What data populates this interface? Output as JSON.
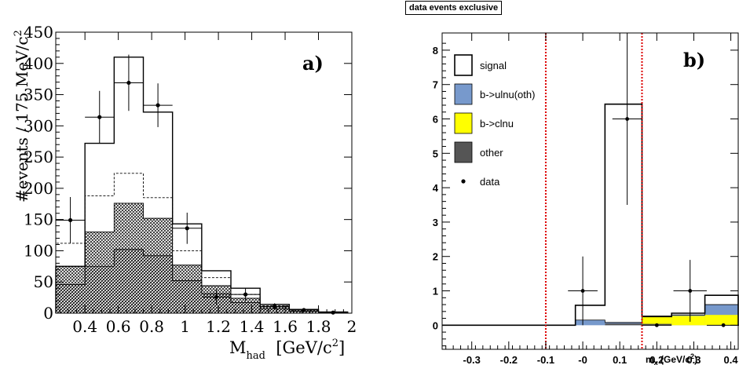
{
  "header": {
    "title": "data events exclusive"
  },
  "chart_data": [
    {
      "type": "histogram",
      "panel_label": "a)",
      "ylabel": "#events / 175 MeV/c",
      "ylabel_sup": "2",
      "xlabel_main": "M",
      "xlabel_sub": "had",
      "xlabel_unit": "[GeV/c",
      "xlabel_unit_sup": "2",
      "xlabel_close": "]",
      "xlim": [
        0.225,
        2.0
      ],
      "ylim": [
        0,
        450
      ],
      "xticks": [
        "0.4",
        "0.6",
        "0.8",
        "1",
        "1.2",
        "1.4",
        "1.6",
        "1.8",
        "2"
      ],
      "yticks": [
        "0",
        "50",
        "100",
        "150",
        "200",
        "250",
        "300",
        "350",
        "400",
        "450"
      ],
      "bin_edges": [
        0.225,
        0.4,
        0.575,
        0.75,
        0.925,
        1.1,
        1.275,
        1.45,
        1.625,
        1.8,
        1.975
      ],
      "series": [
        {
          "style": "solid",
          "values": [
            75,
            272,
            410,
            322,
            143,
            68,
            40,
            14,
            6,
            2
          ]
        },
        {
          "style": "dashed",
          "values": [
            112,
            188,
            224,
            185,
            100,
            57,
            30,
            12,
            5,
            2
          ]
        },
        {
          "style": "crosshatch",
          "values": [
            75,
            130,
            176,
            152,
            77,
            44,
            24,
            10,
            5,
            1
          ]
        },
        {
          "style": "diagonal",
          "values": [
            46,
            75,
            102,
            92,
            52,
            31,
            17,
            7,
            3,
            1
          ]
        }
      ],
      "data_points": {
        "x": [
          0.3125,
          0.4875,
          0.6625,
          0.8375,
          1.0125,
          1.1875,
          1.3625,
          1.5375,
          1.7125,
          1.8875
        ],
        "y": [
          149,
          314,
          369,
          333,
          136,
          26,
          30,
          11,
          5,
          1
        ],
        "yerr": [
          37,
          42,
          45,
          35,
          25,
          12,
          10,
          5,
          3,
          1
        ]
      }
    },
    {
      "type": "histogram",
      "panel_label": "b)",
      "xlabel_main": "m",
      "xlabel_sub": "x",
      "xlabel_unit": "(GeV/c",
      "xlabel_unit_sup": "2",
      "xlabel_close": ")",
      "xlim": [
        -0.38,
        0.42
      ],
      "ylim": [
        -0.7,
        8.5
      ],
      "xticks": [
        "-0.3",
        "-0.2",
        "-0.1",
        "-0",
        "0.1",
        "0.2",
        "0.3",
        "0.4"
      ],
      "xtick_values": [
        -0.3,
        -0.2,
        -0.1,
        0.0,
        0.1,
        0.2,
        0.3,
        0.4
      ],
      "yticks": [
        "0",
        "1",
        "2",
        "3",
        "4",
        "5",
        "6",
        "7",
        "8"
      ],
      "bin_edges": [
        -0.38,
        -0.02,
        0.06,
        0.16,
        0.24,
        0.33,
        0.42
      ],
      "cut_lines": [
        -0.1,
        0.16
      ],
      "series": [
        {
          "name": "signal",
          "color": "#ffffff",
          "values": [
            0,
            0.58,
            6.43,
            0.25,
            0.35,
            0.87
          ]
        },
        {
          "name": "b->ulnu(oth)",
          "color": "#7799cc",
          "values": [
            0,
            0.15,
            0.08,
            0.27,
            0.3,
            0.6
          ]
        },
        {
          "name": "b->clnu",
          "color": "#ffff00",
          "values": [
            0,
            0,
            0,
            0.27,
            0.27,
            0.3
          ]
        },
        {
          "name": "other",
          "color": "#555555",
          "values": [
            0,
            0,
            0.05,
            0.04,
            0,
            0
          ]
        }
      ],
      "legend": [
        "signal",
        "b->ulnu(oth)",
        "b->clnu",
        "other",
        "data"
      ],
      "data_points": {
        "x": [
          0.0,
          0.12,
          0.2,
          0.29,
          0.38
        ],
        "y": [
          1,
          6,
          0,
          1,
          0
        ],
        "yerr": [
          1,
          2.5,
          0,
          0.9,
          0
        ],
        "xerr": [
          0.04,
          0.04,
          0.04,
          0.045,
          0.045
        ]
      }
    }
  ]
}
